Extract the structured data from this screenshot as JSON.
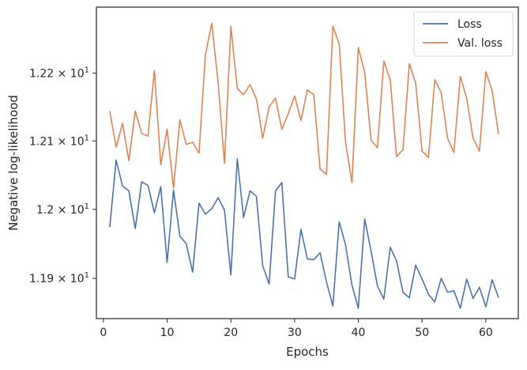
{
  "chart_data": {
    "type": "line",
    "xlabel": "Epochs",
    "ylabel": "Negative log-likelihood",
    "y_scale": "log",
    "xlim": [
      -1.1,
      65.1
    ],
    "ylim": [
      11.842,
      12.298
    ],
    "grid": false,
    "legend_position": "top-right",
    "x_ticks": [
      0,
      10,
      20,
      30,
      40,
      50,
      60
    ],
    "x_tick_labels": [
      "0",
      "10",
      "20",
      "30",
      "40",
      "50",
      "60"
    ],
    "y_ticks": [
      11.9,
      12.0,
      12.1,
      12.2
    ],
    "y_tick_labels": [
      {
        "mantissa": "1.19",
        "base": "10",
        "exp": "1"
      },
      {
        "mantissa": "1.2",
        "base": "10",
        "exp": "1"
      },
      {
        "mantissa": "1.21",
        "base": "10",
        "exp": "1"
      },
      {
        "mantissa": "1.22",
        "base": "10",
        "exp": "1"
      }
    ],
    "x": [
      1,
      2,
      3,
      4,
      5,
      6,
      7,
      8,
      9,
      10,
      11,
      12,
      13,
      14,
      15,
      16,
      17,
      18,
      19,
      20,
      21,
      22,
      23,
      24,
      25,
      26,
      27,
      28,
      29,
      30,
      31,
      32,
      33,
      34,
      35,
      36,
      37,
      38,
      39,
      40,
      41,
      42,
      43,
      44,
      45,
      46,
      47,
      48,
      49,
      50,
      51,
      52,
      53,
      54,
      55,
      56,
      57,
      58,
      59,
      60,
      61,
      62
    ],
    "series": [
      {
        "name": "Loss",
        "color": "#4c72b0",
        "values": [
          11.974,
          12.072,
          12.034,
          12.027,
          11.972,
          12.04,
          12.035,
          11.995,
          12.033,
          11.923,
          12.028,
          11.961,
          11.95,
          11.909,
          12.009,
          11.993,
          12.001,
          12.017,
          11.999,
          11.905,
          12.074,
          11.988,
          12.027,
          12.019,
          11.918,
          11.892,
          12.027,
          12.039,
          11.902,
          11.899,
          11.971,
          11.928,
          11.927,
          11.937,
          11.895,
          11.86,
          11.982,
          11.948,
          11.89,
          11.857,
          11.986,
          11.939,
          11.889,
          11.87,
          11.945,
          11.925,
          11.88,
          11.872,
          11.919,
          11.899,
          11.877,
          11.866,
          11.9,
          11.88,
          11.882,
          11.857,
          11.899,
          11.871,
          11.887,
          11.859,
          11.898,
          11.872
        ]
      },
      {
        "name": "Val. loss",
        "color": "#dd8452",
        "values": [
          12.144,
          12.091,
          12.126,
          12.071,
          12.144,
          12.111,
          12.107,
          12.204,
          12.065,
          12.117,
          12.031,
          12.131,
          12.095,
          12.098,
          12.082,
          12.226,
          12.274,
          12.186,
          12.067,
          12.269,
          12.177,
          12.168,
          12.183,
          12.162,
          12.104,
          12.15,
          12.163,
          12.117,
          12.14,
          12.166,
          12.13,
          12.175,
          12.168,
          12.059,
          12.051,
          12.27,
          12.243,
          12.097,
          12.039,
          12.238,
          12.201,
          12.101,
          12.09,
          12.218,
          12.19,
          12.077,
          12.087,
          12.214,
          12.185,
          12.085,
          12.076,
          12.19,
          12.171,
          12.104,
          12.083,
          12.195,
          12.163,
          12.104,
          12.085,
          12.202,
          12.174,
          12.11
        ]
      }
    ]
  }
}
